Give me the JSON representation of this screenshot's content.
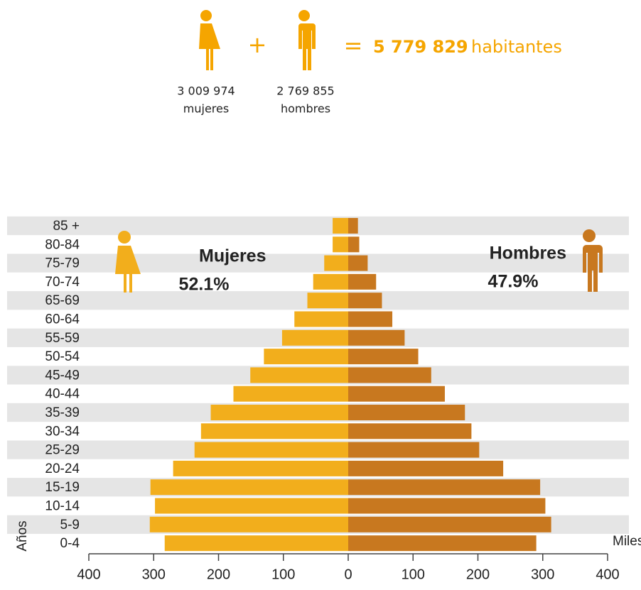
{
  "header": {
    "plus": "+",
    "equals": "=",
    "total": "5 779 829",
    "total_unit": "habitantes",
    "women_count": "3 009 974",
    "women_label": "mujeres",
    "men_count": "2 769 855",
    "men_label": "hombres"
  },
  "chart_data": {
    "type": "pyramid",
    "categories": [
      "85 +",
      "80-84",
      "75-79",
      "70-74",
      "65-69",
      "60-64",
      "55-59",
      "50-54",
      "45-49",
      "40-44",
      "35-39",
      "30-34",
      "25-29",
      "20-24",
      "15-19",
      "10-14",
      "5-9",
      "0-4"
    ],
    "series": [
      {
        "name": "Mujeres",
        "color": "#f2ae1c",
        "side": "left",
        "share": "52.1%",
        "values": [
          24,
          24,
          37,
          54,
          63,
          83,
          102,
          130,
          151,
          177,
          212,
          227,
          237,
          270,
          305,
          298,
          306,
          283
        ]
      },
      {
        "name": "Hombres",
        "color": "#c8781f",
        "side": "right",
        "share": "47.9%",
        "values": [
          15,
          17,
          30,
          43,
          52,
          68,
          87,
          108,
          128,
          149,
          180,
          190,
          202,
          239,
          296,
          304,
          313,
          290
        ]
      }
    ],
    "xlim": [
      -400,
      400
    ],
    "xticks": [
      {
        "value": -400,
        "label": "400"
      },
      {
        "value": -300,
        "label": "300"
      },
      {
        "value": -200,
        "label": "200"
      },
      {
        "value": -100,
        "label": "100"
      },
      0,
      100,
      200,
      300,
      400
    ],
    "x_label": "Miles",
    "y_label": "Años",
    "band_color": "#e5e5e5"
  }
}
